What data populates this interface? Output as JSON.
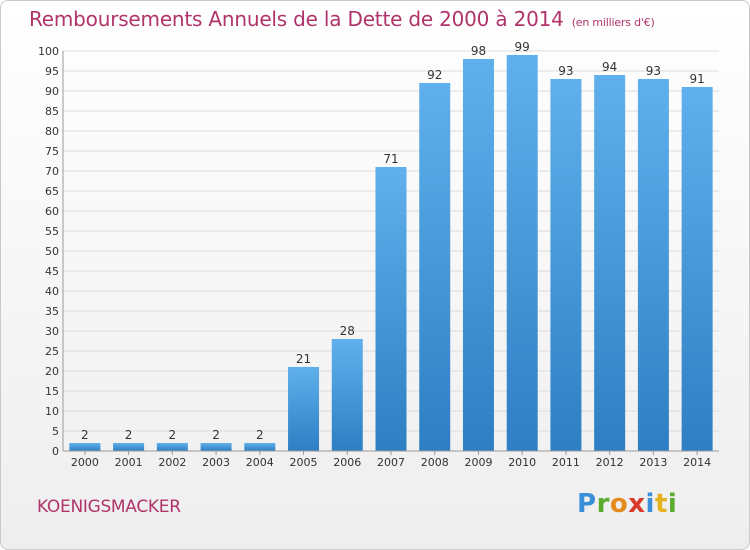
{
  "chart_data": {
    "type": "bar",
    "title": "Remboursements Annuels de la Dette de 2000 à 2014",
    "subtitle": "(en milliers d'€)",
    "categories": [
      "2000",
      "2001",
      "2002",
      "2003",
      "2004",
      "2005",
      "2006",
      "2007",
      "2008",
      "2009",
      "2010",
      "2011",
      "2012",
      "2013",
      "2014"
    ],
    "values": [
      2,
      2,
      2,
      2,
      2,
      21,
      28,
      71,
      92,
      98,
      99,
      93,
      94,
      93,
      91
    ],
    "ylim": [
      0,
      100
    ],
    "ytick_step": 5,
    "grid": true,
    "bar_color_top": "#5fb0ec",
    "bar_color_bottom": "#2e7fc3"
  },
  "footer": {
    "place": "KOENIGSMACKER",
    "logo": "Proxiti"
  },
  "logo_parts": [
    "P",
    "r",
    "o",
    "x",
    "i",
    "t",
    "i"
  ]
}
